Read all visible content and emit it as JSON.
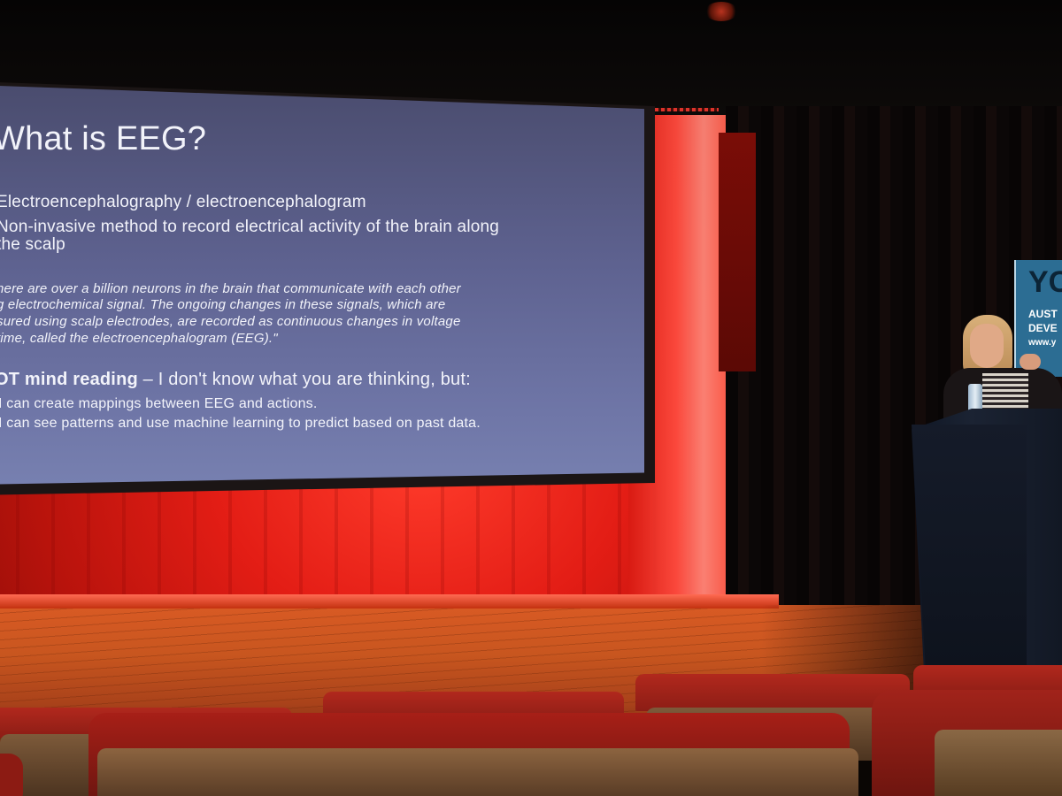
{
  "slide": {
    "title": "What is EEG?",
    "bullet_1": "Electroencephalography / electroencephalogram",
    "bullet_2_line1": "Non-invasive method to record electrical activity of the brain along",
    "bullet_2_line2": "the scalp",
    "quote_lines": [
      "here are over a billion neurons in the brain that communicate with each other",
      "g electrochemical signal. The ongoing changes in these signals, which are",
      "sured using scalp electrodes, are recorded as continuous changes in voltage",
      "time, called the electroencephalogram (EEG).\""
    ],
    "bullet_3_bold": "OT mind reading",
    "bullet_3_rest": " – I don't know what you are thinking, but:",
    "sub_1": "I can create mappings between EEG and actions.",
    "sub_2": "I can see patterns and use machine learning to predict based on past data."
  },
  "banner": {
    "letters": "YC",
    "line_1": "AUST",
    "line_2": "DEVE",
    "line_3": "www.y"
  },
  "colors": {
    "stage_light": "#e31d15",
    "screen": "#5e6290",
    "floor": "#c8561f",
    "seats": "#b1281d"
  }
}
